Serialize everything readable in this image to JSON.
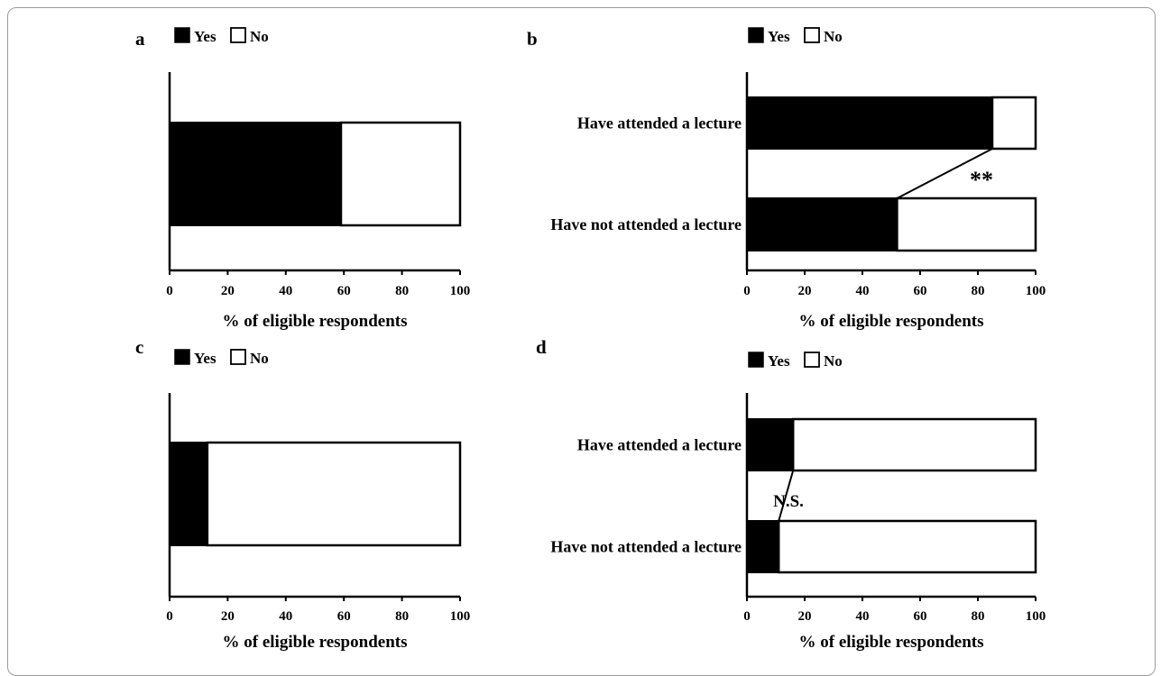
{
  "chart_data": [
    {
      "panel": "a",
      "type": "bar",
      "stacked": true,
      "orientation": "horizontal",
      "categories": [
        ""
      ],
      "series": [
        {
          "name": "Yes",
          "values": [
            59
          ]
        },
        {
          "name": "No",
          "values": [
            41
          ]
        }
      ],
      "xlabel": "% of eligible respondents",
      "xlim": [
        0,
        100
      ],
      "xticks": [
        "0",
        "20",
        "40",
        "60",
        "80",
        "100"
      ],
      "legend": "top-left",
      "annotation": ""
    },
    {
      "panel": "b",
      "type": "bar",
      "stacked": true,
      "orientation": "horizontal",
      "categories": [
        "Have attended a lecture",
        "Have not attended a lecture"
      ],
      "series": [
        {
          "name": "Yes",
          "values": [
            85,
            52
          ]
        },
        {
          "name": "No",
          "values": [
            15,
            48
          ]
        }
      ],
      "xlabel": "% of eligible respondents",
      "xlim": [
        0,
        100
      ],
      "xticks": [
        "0",
        "20",
        "40",
        "60",
        "80",
        "100"
      ],
      "legend": "top-left",
      "annotation": "**"
    },
    {
      "panel": "c",
      "type": "bar",
      "stacked": true,
      "orientation": "horizontal",
      "categories": [
        ""
      ],
      "series": [
        {
          "name": "Yes",
          "values": [
            13
          ]
        },
        {
          "name": "No",
          "values": [
            87
          ]
        }
      ],
      "xlabel": "% of eligible respondents",
      "xlim": [
        0,
        100
      ],
      "xticks": [
        "0",
        "20",
        "40",
        "60",
        "80",
        "100"
      ],
      "legend": "top-left",
      "annotation": ""
    },
    {
      "panel": "d",
      "type": "bar",
      "stacked": true,
      "orientation": "horizontal",
      "categories": [
        "Have attended a lecture",
        "Have not attended a lecture"
      ],
      "series": [
        {
          "name": "Yes",
          "values": [
            16,
            11
          ]
        },
        {
          "name": "No",
          "values": [
            84,
            89
          ]
        }
      ],
      "xlabel": "% of eligible respondents",
      "xlim": [
        0,
        100
      ],
      "xticks": [
        "0",
        "20",
        "40",
        "60",
        "80",
        "100"
      ],
      "legend": "top-left",
      "annotation": "N.S."
    }
  ],
  "colors": {
    "yes": "#000000",
    "no": "#ffffff",
    "stroke": "#000000"
  }
}
